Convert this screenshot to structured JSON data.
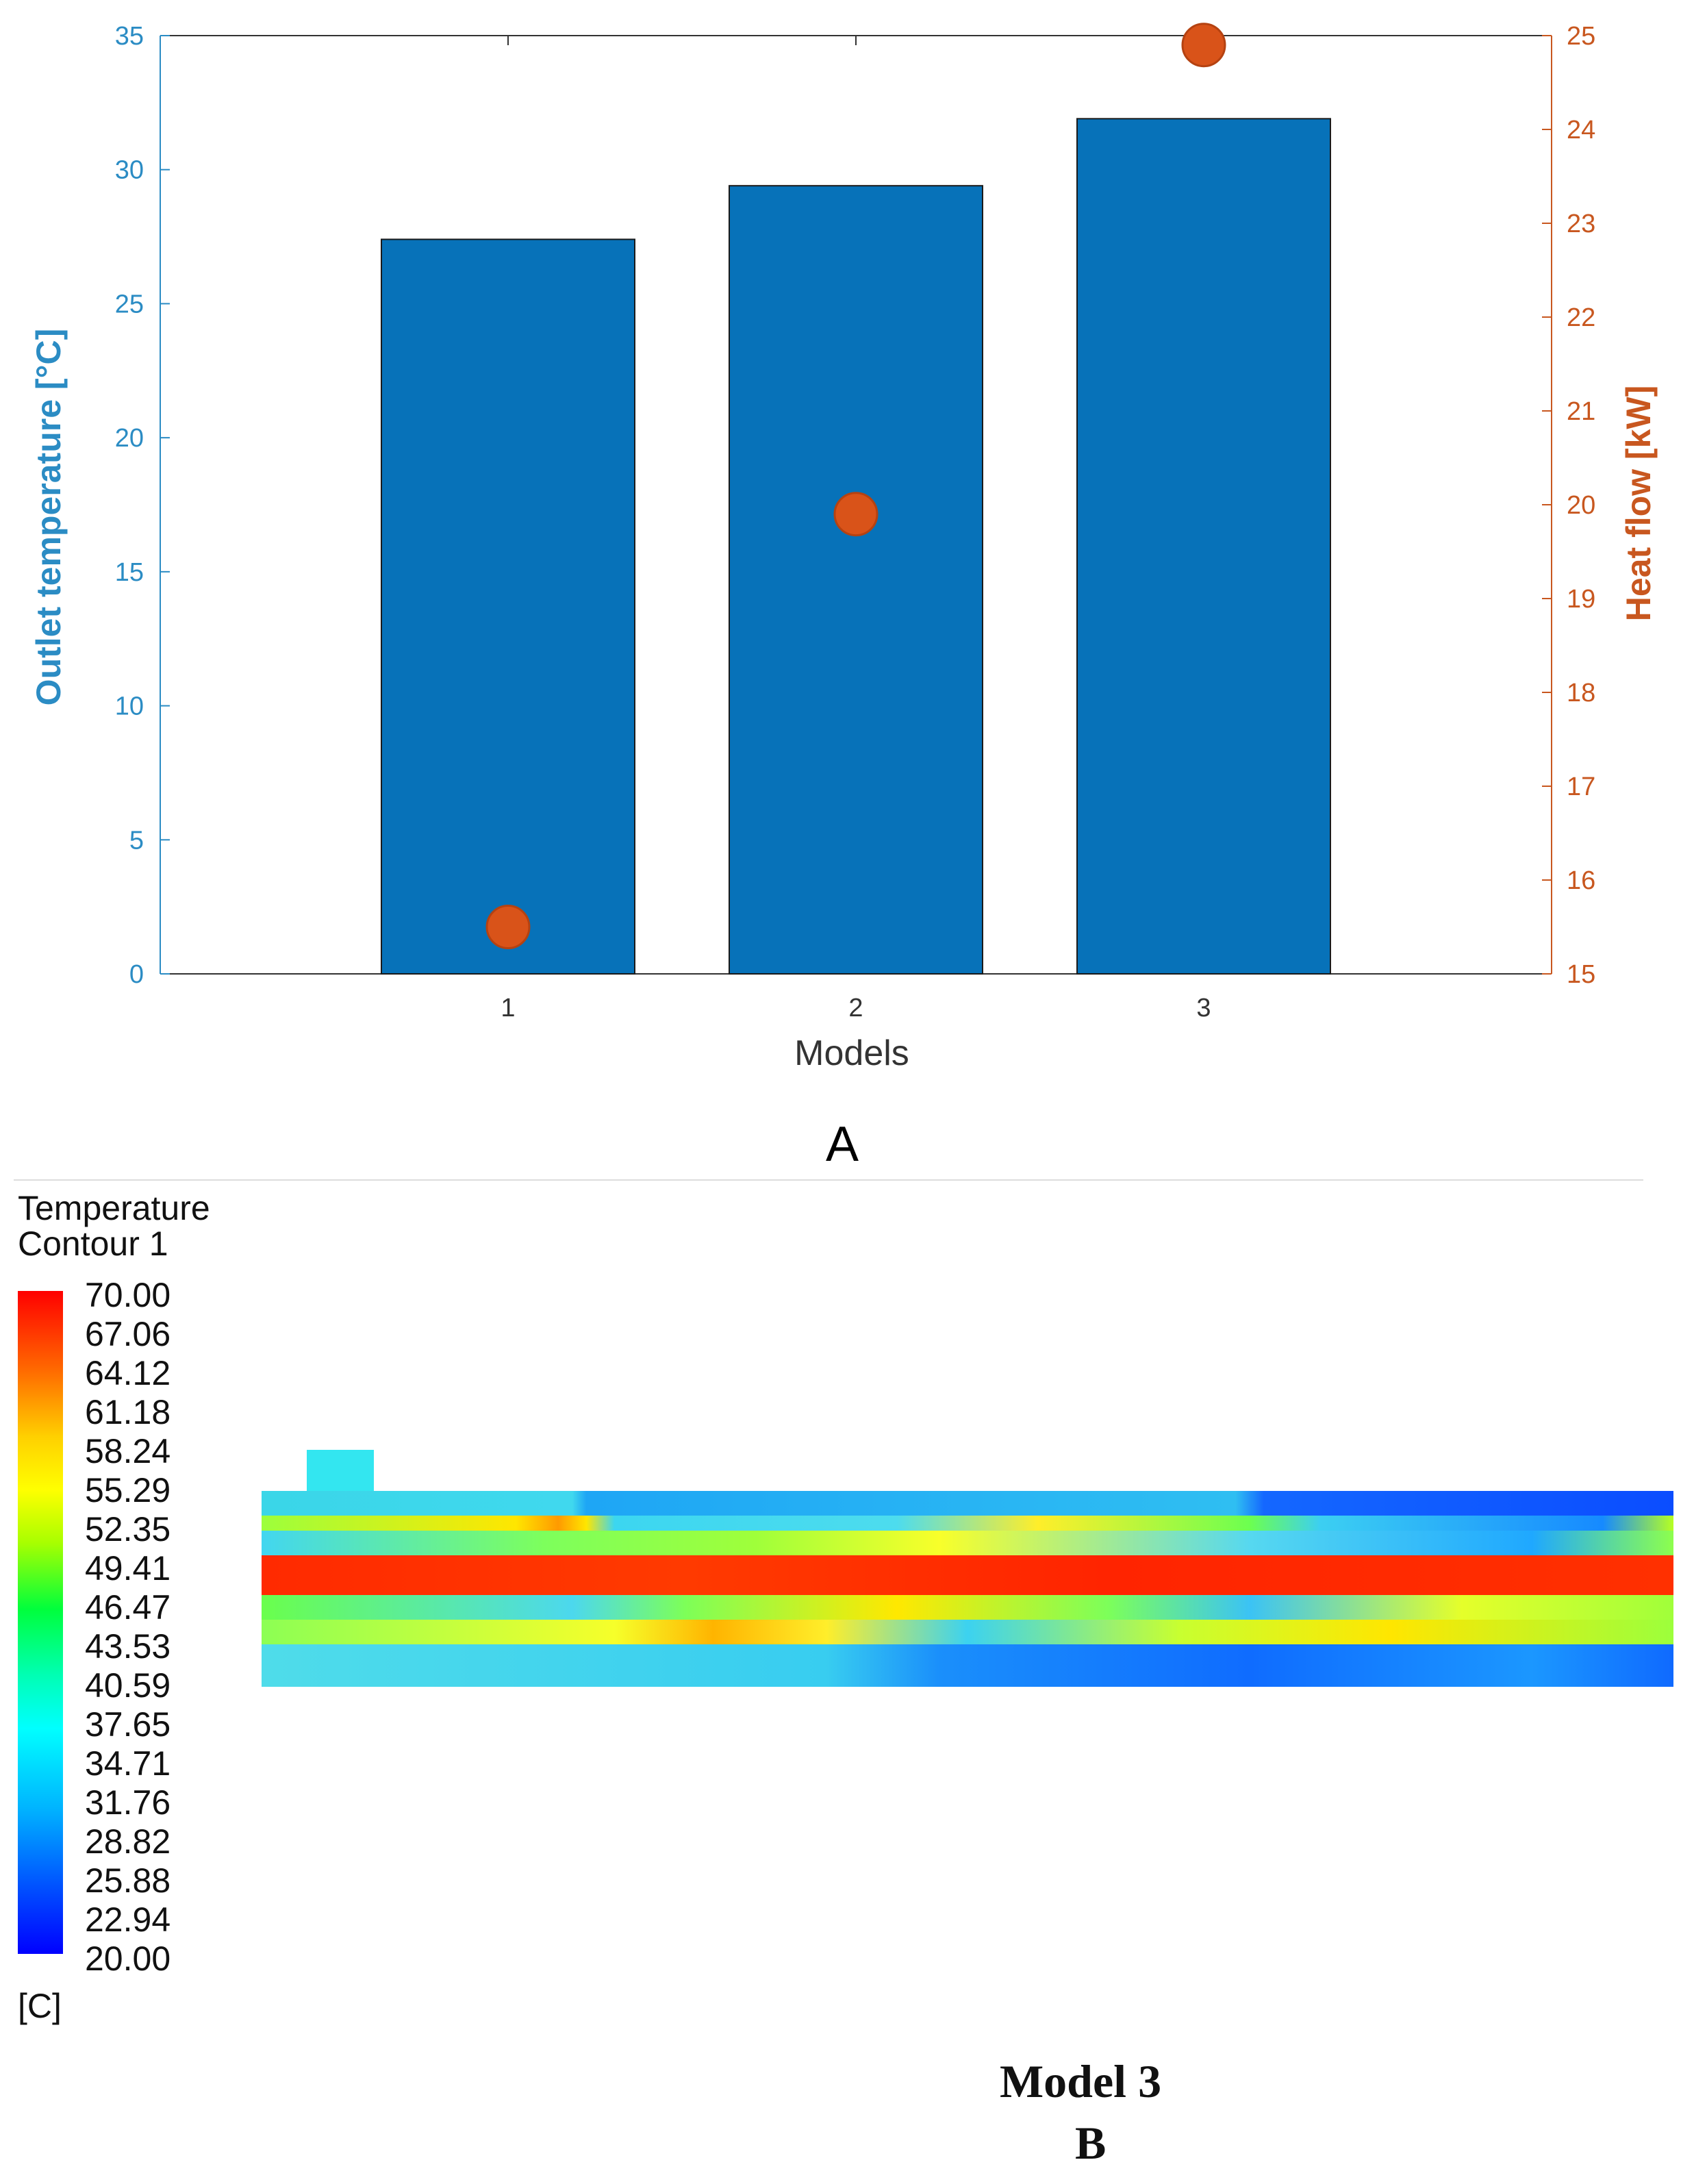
{
  "chart_data": {
    "type": "bar",
    "categories": [
      "1",
      "2",
      "3"
    ],
    "series": [
      {
        "name": "Outlet temperature [°C]",
        "axis": "left",
        "kind": "bar",
        "color": "#0772b9",
        "values": [
          27.4,
          29.4,
          31.9
        ]
      },
      {
        "name": "Heat flow [kW]",
        "axis": "right",
        "kind": "scatter",
        "color": "#d95319",
        "values": [
          15.5,
          19.9,
          24.9
        ]
      }
    ],
    "xlabel": "Models",
    "ylabel_left": "Outlet temperature [°C]",
    "ylabel_right": "Heat flow [kW]",
    "ylim_left": [
      0,
      35
    ],
    "ylim_right": [
      15,
      25
    ],
    "yticks_left": [
      "0",
      "5",
      "10",
      "15",
      "20",
      "25",
      "30",
      "35"
    ],
    "yticks_right": [
      "15",
      "16",
      "17",
      "18",
      "19",
      "20",
      "21",
      "22",
      "23",
      "24",
      "25"
    ],
    "panel_label": "A"
  },
  "contour": {
    "title_line1": "Temperature",
    "title_line2": "Contour 1",
    "levels": [
      "70.00",
      "67.06",
      "64.12",
      "61.18",
      "58.24",
      "55.29",
      "52.35",
      "49.41",
      "46.47",
      "43.53",
      "40.59",
      "37.65",
      "34.71",
      "31.76",
      "28.82",
      "25.88",
      "22.94",
      "20.00"
    ],
    "unit": "[C]",
    "model_name": "Model 3",
    "panel_label": "B",
    "colors": {
      "hot": "#ff2a00",
      "warm": "#ffe600",
      "mid": "#3cff3c",
      "cool": "#00d6ff",
      "cold": "#0a5cff"
    }
  }
}
